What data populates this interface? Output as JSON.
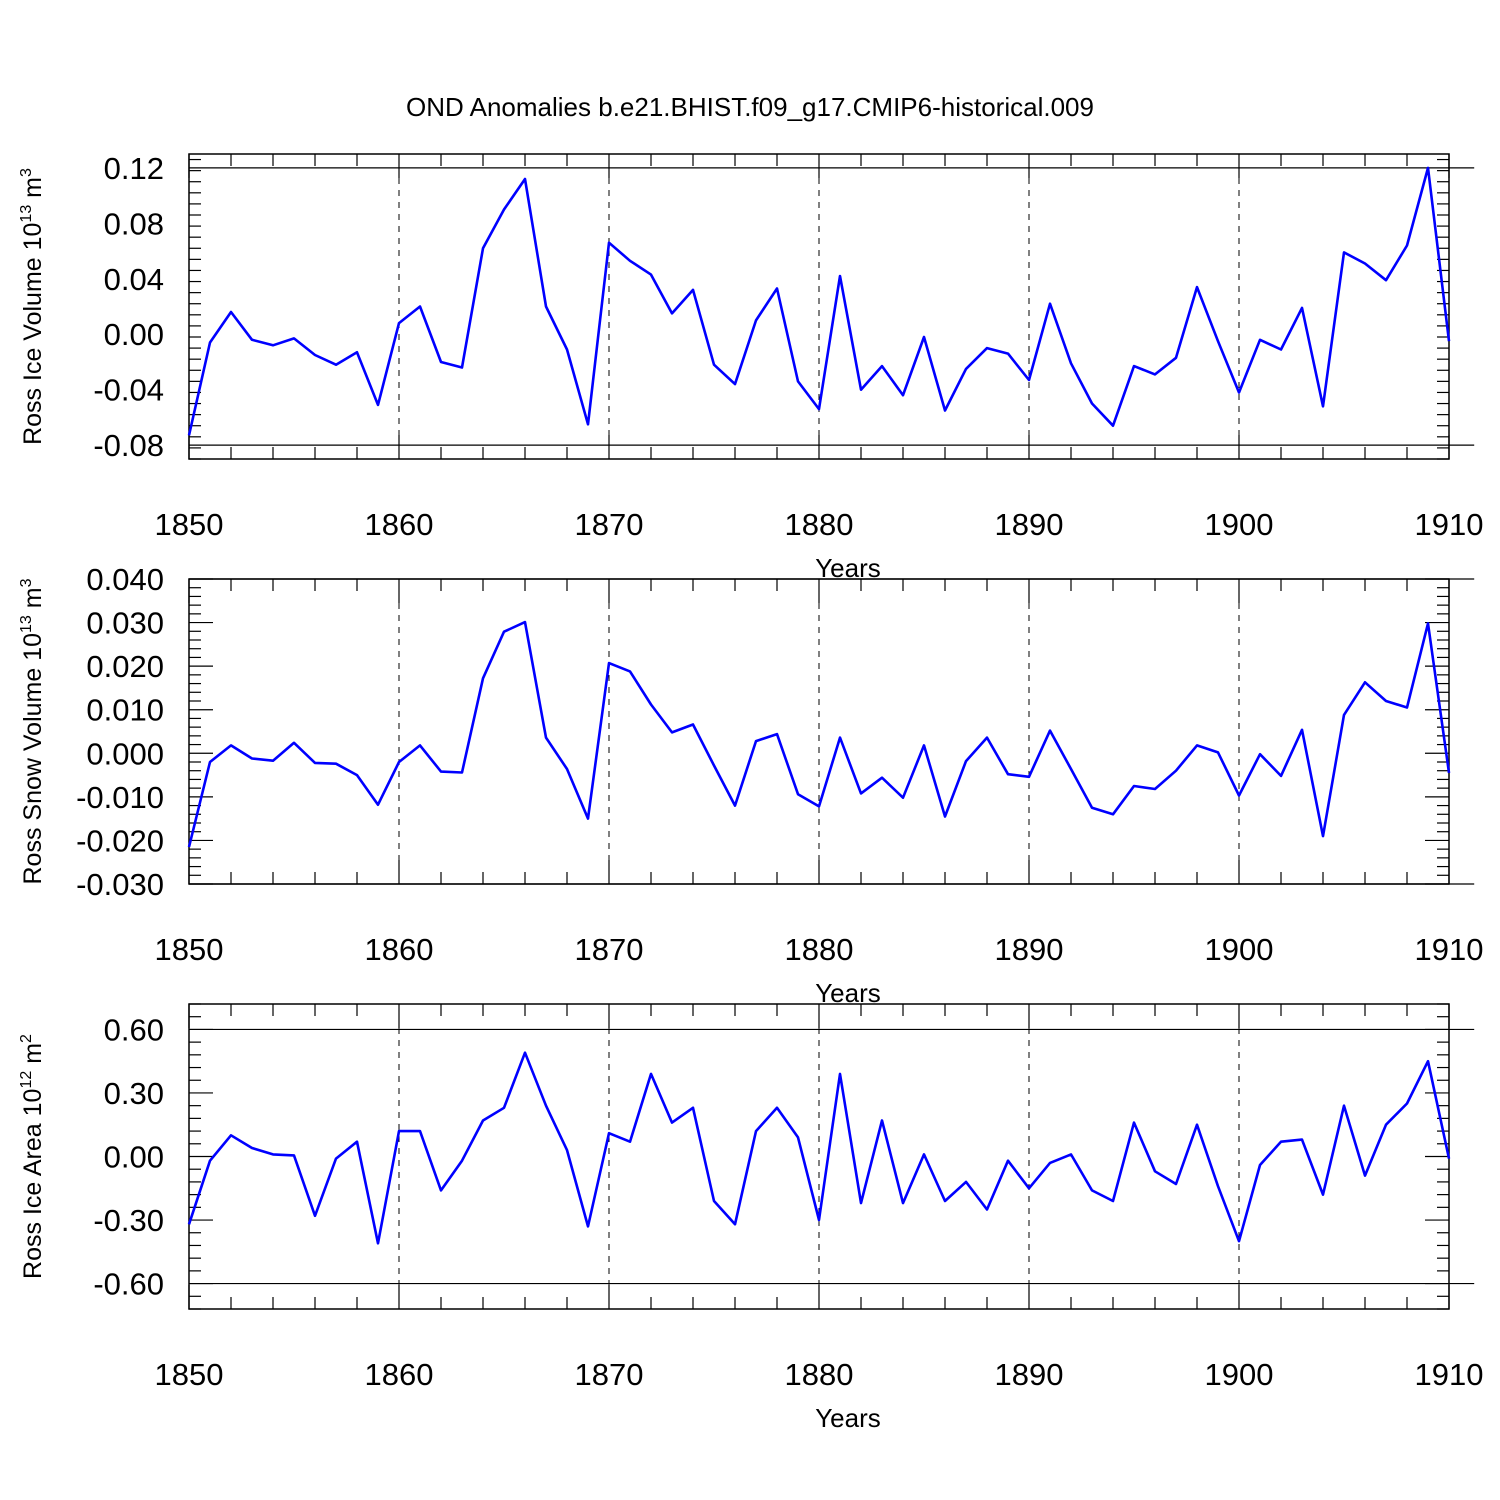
{
  "title": "OND Anomalies b.e21.BHIST.f09_g17.CMIP6-historical.009",
  "colors": {
    "series": "#0000ff",
    "axes": "#000000"
  },
  "chart_data": [
    {
      "type": "line",
      "name": "ice-volume",
      "ylabel_main": "Ross Ice Volume 10",
      "ylabel_exp": "13",
      "ylabel_unit": " m",
      "ylabel_unit_exp": "3",
      "xlabel": "Years",
      "xlim": [
        1850,
        1910
      ],
      "ylim": [
        -0.09,
        0.13
      ],
      "yticks": [
        -0.08,
        -0.04,
        0.0,
        0.04,
        0.08,
        0.12
      ],
      "ytick_labels": [
        "-0.08",
        "-0.04",
        "0.00",
        "0.04",
        "0.08",
        "0.12"
      ],
      "xticks": [
        1850,
        1860,
        1870,
        1880,
        1890,
        1900,
        1910
      ],
      "xtick_labels": [
        "1850",
        "1860",
        "1870",
        "1880",
        "1890",
        "1900",
        "1910"
      ],
      "x_start": 1850,
      "values": [
        -0.073,
        -0.006,
        0.016,
        -0.004,
        -0.008,
        -0.003,
        -0.015,
        -0.022,
        -0.013,
        -0.051,
        0.008,
        0.02,
        -0.02,
        -0.024,
        0.062,
        0.09,
        0.112,
        0.02,
        -0.011,
        -0.065,
        0.066,
        0.053,
        0.043,
        0.015,
        0.032,
        -0.022,
        -0.036,
        0.01,
        0.033,
        -0.034,
        -0.054,
        0.042,
        -0.04,
        -0.023,
        -0.044,
        -0.002,
        -0.055,
        -0.025,
        -0.01,
        -0.014,
        -0.033,
        0.022,
        -0.021,
        -0.05,
        -0.066,
        -0.023,
        -0.029,
        -0.017,
        0.034,
        -0.005,
        -0.042,
        -0.004,
        -0.011,
        0.019,
        -0.052,
        0.059,
        0.051,
        0.039,
        0.064,
        0.12,
        -0.005
      ]
    },
    {
      "type": "line",
      "name": "snow-volume",
      "ylabel_main": "Ross Snow Volume 10",
      "ylabel_exp": "13",
      "ylabel_unit": " m",
      "ylabel_unit_exp": "3",
      "xlabel": "Years",
      "xlim": [
        1850,
        1910
      ],
      "ylim": [
        -0.03,
        0.04
      ],
      "yticks": [
        -0.03,
        -0.02,
        -0.01,
        0.0,
        0.01,
        0.02,
        0.03,
        0.04
      ],
      "ytick_labels": [
        "-0.030",
        "-0.020",
        "-0.010",
        "0.000",
        "0.010",
        "0.020",
        "0.030",
        "0.040"
      ],
      "xticks": [
        1850,
        1860,
        1870,
        1880,
        1890,
        1900,
        1910
      ],
      "xtick_labels": [
        "1850",
        "1860",
        "1870",
        "1880",
        "1890",
        "1900",
        "1910"
      ],
      "x_start": 1850,
      "values": [
        -0.0215,
        -0.002,
        0.0018,
        -0.0012,
        -0.0017,
        0.0024,
        -0.0022,
        -0.0024,
        -0.005,
        -0.0118,
        -0.002,
        0.0018,
        -0.0042,
        -0.0044,
        0.0172,
        0.0279,
        0.0301,
        0.0036,
        -0.0036,
        -0.015,
        0.0207,
        0.0188,
        0.0112,
        0.0048,
        0.0066,
        -0.0028,
        -0.012,
        0.0028,
        0.0044,
        -0.0094,
        -0.0122,
        0.0036,
        -0.0092,
        -0.0056,
        -0.0102,
        0.0018,
        -0.0145,
        -0.0018,
        0.0036,
        -0.0048,
        -0.0054,
        0.0052,
        -0.0036,
        -0.0125,
        -0.014,
        -0.0075,
        -0.0082,
        -0.004,
        0.0018,
        0.0002,
        -0.0097,
        -0.0002,
        -0.0052,
        0.0054,
        -0.019,
        0.0088,
        0.0163,
        0.012,
        0.0105,
        0.0298,
        -0.0045
      ]
    },
    {
      "type": "line",
      "name": "ice-area",
      "ylabel_main": "Ross Ice Area 10",
      "ylabel_exp": "12",
      "ylabel_unit": " m",
      "ylabel_unit_exp": "2",
      "xlabel": "Years",
      "xlim": [
        1850,
        1910
      ],
      "ylim": [
        -0.72,
        0.72
      ],
      "yticks": [
        -0.6,
        -0.3,
        0.0,
        0.3,
        0.6
      ],
      "ytick_labels": [
        "-0.60",
        "-0.30",
        "0.00",
        "0.30",
        "0.60"
      ],
      "xticks": [
        1850,
        1860,
        1870,
        1880,
        1890,
        1900,
        1910
      ],
      "xtick_labels": [
        "1850",
        "1860",
        "1870",
        "1880",
        "1890",
        "1900",
        "1910"
      ],
      "x_start": 1850,
      "values": [
        -0.32,
        -0.02,
        0.1,
        0.04,
        0.01,
        0.005,
        -0.28,
        -0.01,
        0.07,
        -0.41,
        0.12,
        0.12,
        -0.16,
        -0.02,
        0.17,
        0.23,
        0.49,
        0.24,
        0.03,
        -0.33,
        0.11,
        0.07,
        0.39,
        0.16,
        0.23,
        -0.21,
        -0.32,
        0.12,
        0.23,
        0.09,
        -0.3,
        0.39,
        -0.22,
        0.17,
        -0.22,
        0.01,
        -0.21,
        -0.12,
        -0.25,
        -0.02,
        -0.15,
        -0.03,
        0.01,
        -0.16,
        -0.21,
        0.16,
        -0.07,
        -0.13,
        0.15,
        -0.14,
        -0.4,
        -0.04,
        0.07,
        0.08,
        -0.18,
        0.24,
        -0.09,
        0.15,
        0.25,
        0.45,
        -0.01
      ]
    }
  ]
}
